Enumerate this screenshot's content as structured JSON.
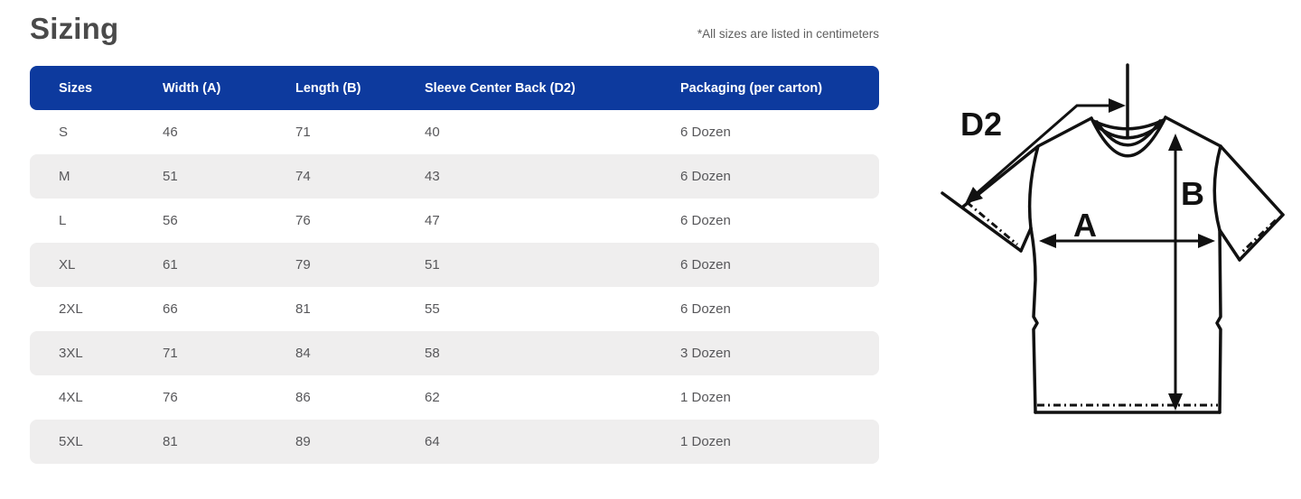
{
  "page": {
    "title": "Sizing",
    "note": "*All sizes are listed in centimeters"
  },
  "table": {
    "columns": [
      "Sizes",
      "Width (A)",
      "Length (B)",
      "Sleeve Center Back (D2)",
      "Packaging (per carton)"
    ],
    "rows": [
      {
        "size": "S",
        "width": "46",
        "length": "71",
        "sleeve": "40",
        "packaging": "6 Dozen"
      },
      {
        "size": "M",
        "width": "51",
        "length": "74",
        "sleeve": "43",
        "packaging": "6 Dozen"
      },
      {
        "size": "L",
        "width": "56",
        "length": "76",
        "sleeve": "47",
        "packaging": "6 Dozen"
      },
      {
        "size": "XL",
        "width": "61",
        "length": "79",
        "sleeve": "51",
        "packaging": "6 Dozen"
      },
      {
        "size": "2XL",
        "width": "66",
        "length": "81",
        "sleeve": "55",
        "packaging": "6 Dozen"
      },
      {
        "size": "3XL",
        "width": "71",
        "length": "84",
        "sleeve": "58",
        "packaging": "3 Dozen"
      },
      {
        "size": "4XL",
        "width": "76",
        "length": "86",
        "sleeve": "62",
        "packaging": "1 Dozen"
      },
      {
        "size": "5XL",
        "width": "81",
        "length": "89",
        "sleeve": "64",
        "packaging": "1 Dozen"
      }
    ]
  },
  "diagram": {
    "labels": {
      "d2": "D2",
      "a": "A",
      "b": "B"
    }
  },
  "colors": {
    "header_bg": "#0d3a9e",
    "stripe": "#efeeee",
    "title": "#4a4a4a",
    "note": "#5e5e5e",
    "cell": "#57575a",
    "line": "#111111"
  }
}
